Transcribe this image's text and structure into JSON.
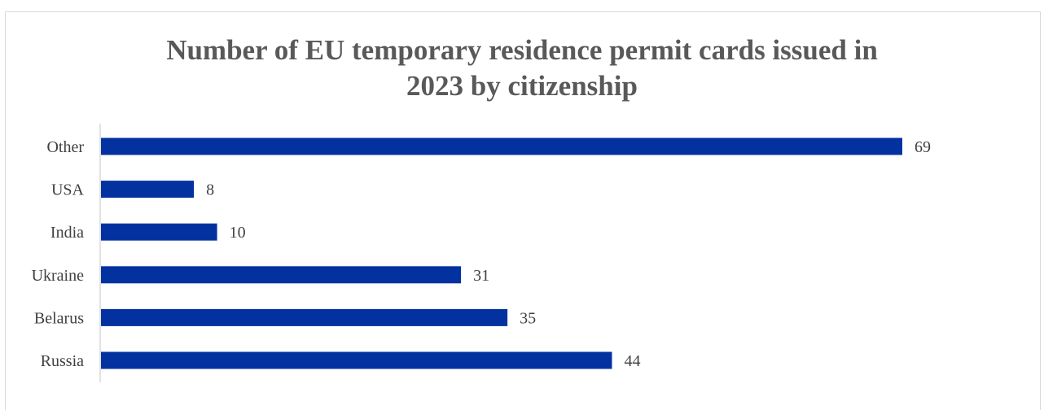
{
  "chart_data": {
    "type": "bar",
    "orientation": "horizontal",
    "title_lines": [
      "Number of EU temporary residence permit cards issued in",
      "2023 by citizenship"
    ],
    "categories": [
      "Other",
      "USA",
      "India",
      "Ukraine",
      "Belarus",
      "Russia"
    ],
    "values": [
      69,
      8,
      10,
      31,
      35,
      44
    ],
    "xlim": [
      0,
      70
    ],
    "grid": false,
    "legend": "none",
    "data_labels": true,
    "colors": {
      "bar": "#0332a0",
      "title": "#595959",
      "label": "#404040",
      "axis": "#d9d9d9"
    }
  }
}
